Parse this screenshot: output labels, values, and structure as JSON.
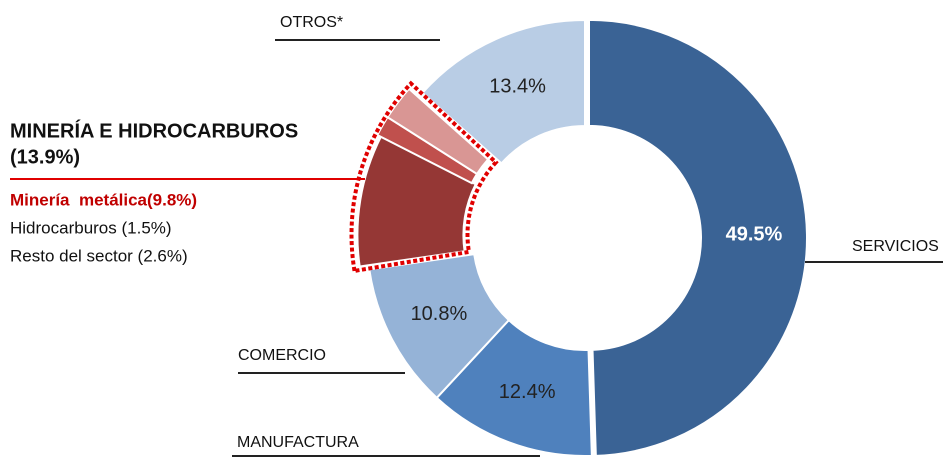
{
  "chart_data": {
    "type": "donut",
    "categories": [
      "SERVICIOS",
      "MANUFACTURA",
      "COMERCIO",
      null,
      null,
      null,
      "OTROS*"
    ],
    "values": [
      49.5,
      12.4,
      10.8,
      9.8,
      1.5,
      2.6,
      13.4
    ],
    "value_labels": [
      "49.5%",
      "12.4%",
      "10.8%",
      null,
      null,
      null,
      "13.4%"
    ],
    "colors": [
      "#3a6395",
      "#4f81bd",
      "#95b3d7",
      "#953735",
      "#c0504d",
      "#d99694",
      "#b9cde5"
    ],
    "annotation": {
      "title_lines": [
        "MINERÍA E HIDROCARBUROS",
        "(13.9%)"
      ],
      "items": [
        "Minería  metálica(9.8%)",
        "Hidrocarburos (1.5%)",
        "Resto del sector (2.6%)"
      ],
      "highlight_color": "#e00000"
    }
  }
}
